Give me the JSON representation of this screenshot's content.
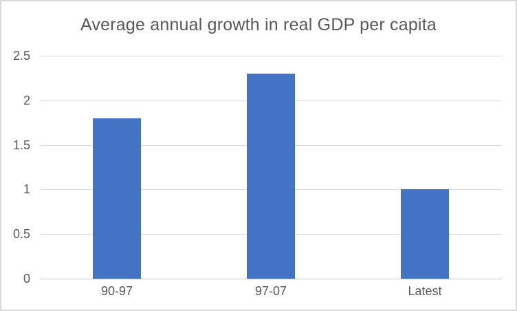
{
  "colors": {
    "bar-color": "#4472c4",
    "text-color": "#595959",
    "gridline-color": "#d9d9d9",
    "axis-color": "#c6c6c6",
    "border-color": "#d9d9d9",
    "chart-bg": "#ffffff"
  },
  "chart_data": {
    "type": "bar",
    "title": "Average annual growth in real GDP per capita",
    "categories": [
      "90-97",
      "97-07",
      "Latest"
    ],
    "values": [
      1.8,
      2.3,
      1.0
    ],
    "xlabel": "",
    "ylabel": "",
    "ylim": [
      0,
      2.5
    ],
    "yticks": [
      {
        "label": "0",
        "value": 0
      },
      {
        "label": "0.5",
        "value": 0.5
      },
      {
        "label": "1",
        "value": 1
      },
      {
        "label": "1.5",
        "value": 1.5
      },
      {
        "label": "2",
        "value": 2
      },
      {
        "label": "2.5",
        "value": 2.5
      }
    ],
    "grid": "horizontal",
    "legend": "none",
    "bar_color": "#4472c4"
  }
}
